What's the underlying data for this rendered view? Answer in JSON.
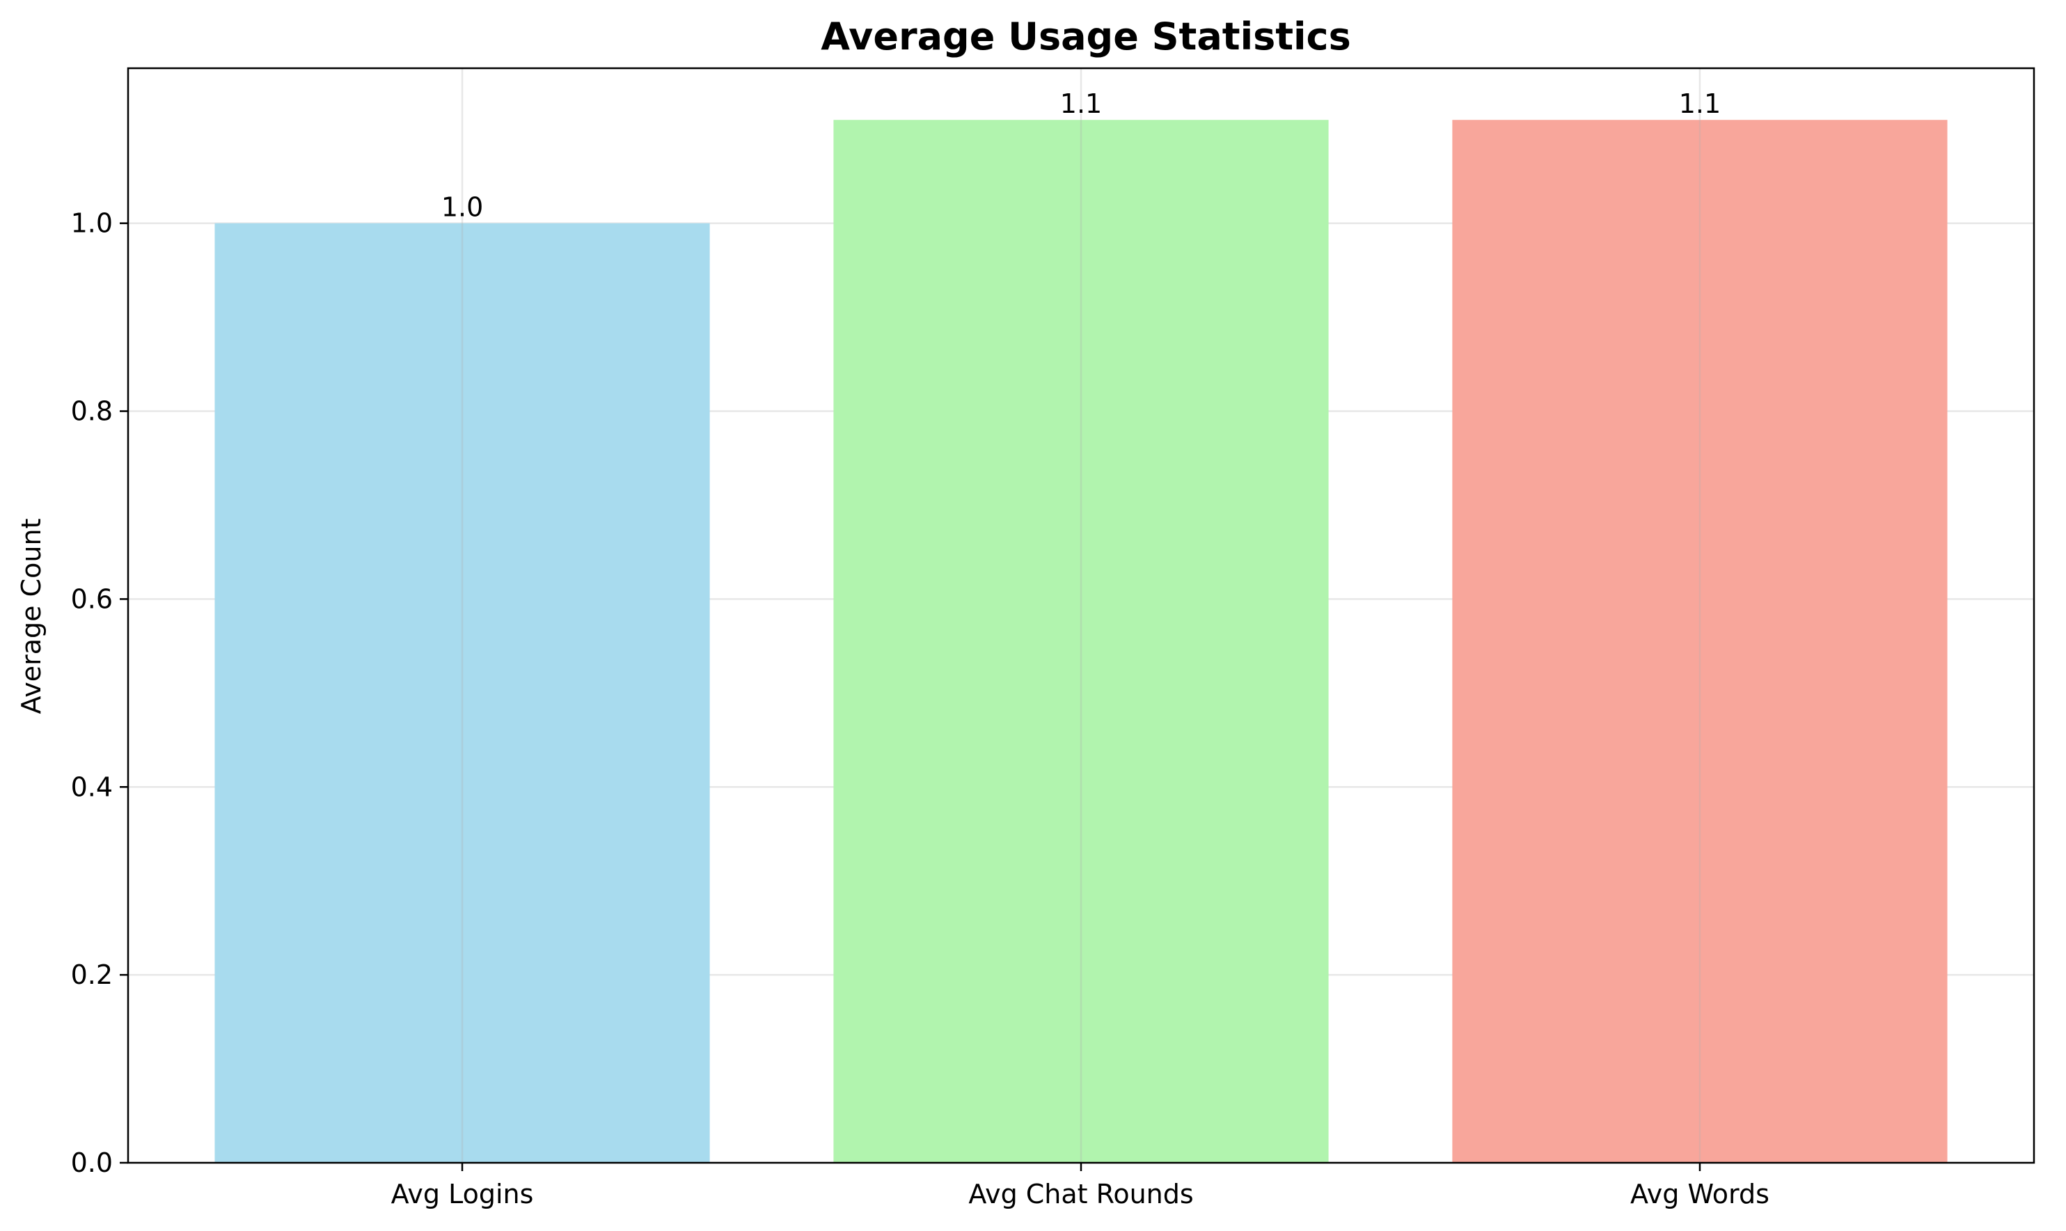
{
  "chart_data": {
    "type": "bar",
    "title": "Average Usage Statistics",
    "xlabel": "",
    "ylabel": "Average Count",
    "categories": [
      "Avg Logins",
      "Avg Chat Rounds",
      "Avg Words"
    ],
    "values": [
      1.0,
      1.11,
      1.11
    ],
    "data_labels": [
      "1.0",
      "1.1",
      "1.1"
    ],
    "colors": [
      "#a8dbee",
      "#b1f4ae",
      "#f8a69b"
    ],
    "ylim": [
      0,
      1.165
    ],
    "yticks": [
      0.0,
      0.2,
      0.4,
      0.6,
      0.8,
      1.0
    ],
    "ytick_labels": [
      "0.0",
      "0.2",
      "0.4",
      "0.6",
      "0.8",
      "1.0"
    ],
    "grid": true,
    "legend": "none"
  }
}
